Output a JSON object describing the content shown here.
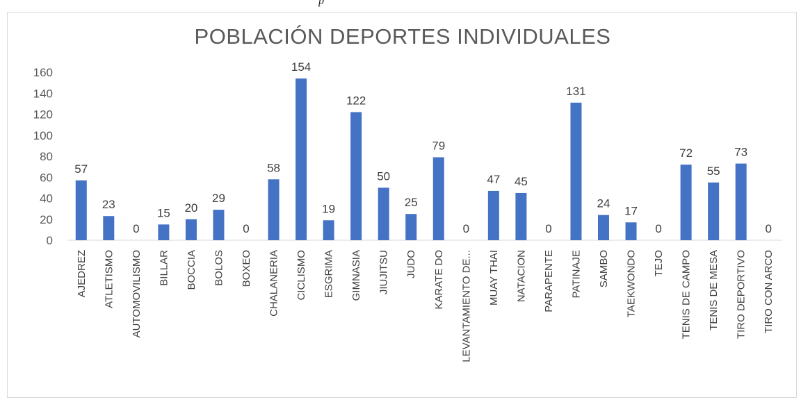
{
  "caption_fragment": "p",
  "chart_data": {
    "type": "bar",
    "title": "POBLACIÓN DEPORTES INDIVIDUALES",
    "xlabel": "",
    "ylabel": "",
    "ylim": [
      0,
      160
    ],
    "yticks": [
      "0",
      "20",
      "40",
      "60",
      "80",
      "100",
      "120",
      "140",
      "160"
    ],
    "grid": false,
    "legend": "none",
    "bar_color": "#4472c4",
    "categories": [
      "AJEDREZ",
      "ATLETISMO",
      "AUTOMOVILISMO",
      "BILLAR",
      "BOCCIA",
      "BOLOS",
      "BOXEO",
      "CHALANERIA",
      "CICLISMO",
      "ESGRIMA",
      "GIMNASIA",
      "JIUJITSU",
      "JUDO",
      "KARATE DO",
      "LEVANTAMIENTO DE...",
      "MUAY THAI",
      "NATACION",
      "PARAPENTE",
      "PATINAJE",
      "SAMBO",
      "TAEKWONDO",
      "TEJO",
      "TENIS DE CAMPO",
      "TENIS DE MESA",
      "TIRO DEPORTIVO",
      "TIRO CON ARCO"
    ],
    "values": [
      57,
      23,
      0,
      15,
      20,
      29,
      0,
      58,
      154,
      19,
      122,
      50,
      25,
      79,
      0,
      47,
      45,
      0,
      131,
      24,
      17,
      0,
      72,
      55,
      73,
      0
    ],
    "data_labels": [
      "57",
      "23",
      "0",
      "15",
      "20",
      "29",
      "0",
      "58",
      "154",
      "19",
      "122",
      "50",
      "25",
      "79",
      "0",
      "47",
      "45",
      "0",
      "131",
      "24",
      "17",
      "0",
      "72",
      "55",
      "73",
      "0"
    ]
  }
}
